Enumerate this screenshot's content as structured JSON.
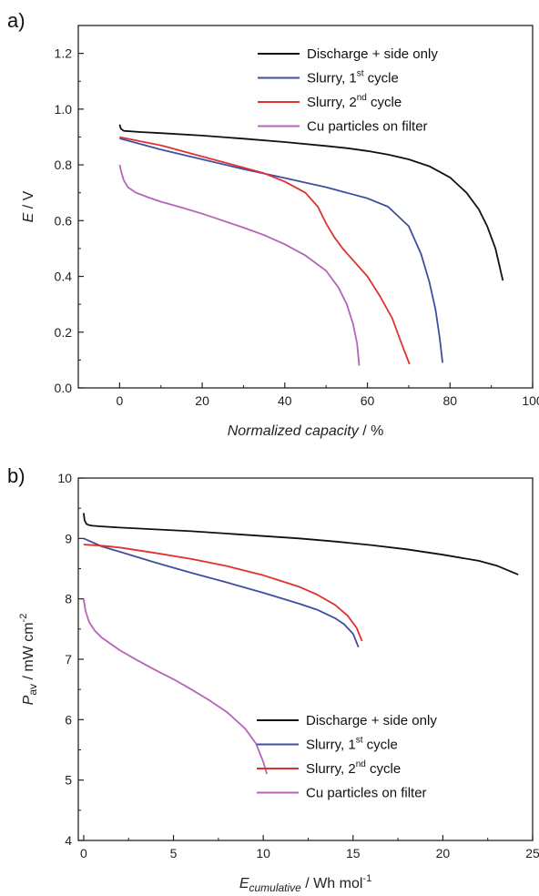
{
  "chart_data": [
    {
      "panel_label": "a)",
      "type": "line",
      "xlabel": "Normalized capacity / %",
      "ylabel_italic": "E",
      "ylabel_rest": " / V",
      "xlim": [
        -10,
        100
      ],
      "ylim": [
        0,
        1.3
      ],
      "xticks": [
        0,
        20,
        40,
        60,
        80,
        100
      ],
      "yticks": [
        0.0,
        0.2,
        0.4,
        0.6,
        0.8,
        1.0,
        1.2
      ],
      "legend_position": "top-right",
      "series": [
        {
          "label_main": "Discharge + side only",
          "label_sup": "",
          "label_tail": "",
          "color": "#111111",
          "x": [
            0,
            0.3,
            1,
            5,
            10,
            20,
            30,
            40,
            50,
            55,
            60,
            65,
            70,
            75,
            80,
            84,
            87,
            89,
            91,
            92.8
          ],
          "y": [
            0.945,
            0.93,
            0.922,
            0.918,
            0.914,
            0.905,
            0.894,
            0.882,
            0.868,
            0.86,
            0.85,
            0.837,
            0.82,
            0.795,
            0.755,
            0.7,
            0.64,
            0.58,
            0.5,
            0.385
          ]
        },
        {
          "label_main": "Slurry, 1",
          "label_sup": "st",
          "label_tail": " cycle",
          "color": "#3f4fa0",
          "x": [
            0,
            5,
            10,
            20,
            30,
            40,
            50,
            55,
            60,
            65,
            70,
            73,
            75,
            76.5,
            77.5,
            78.2
          ],
          "y": [
            0.895,
            0.875,
            0.855,
            0.82,
            0.785,
            0.753,
            0.72,
            0.7,
            0.68,
            0.65,
            0.58,
            0.48,
            0.38,
            0.28,
            0.18,
            0.09
          ]
        },
        {
          "label_main": "Slurry, 2",
          "label_sup": "nd",
          "label_tail": " cycle",
          "color": "#e03030",
          "x": [
            0,
            5,
            10,
            15,
            20,
            25,
            30,
            35,
            40,
            45,
            48,
            50,
            52,
            54,
            57,
            60,
            63,
            66,
            68,
            70.2
          ],
          "y": [
            0.9,
            0.885,
            0.87,
            0.85,
            0.83,
            0.81,
            0.79,
            0.77,
            0.74,
            0.7,
            0.65,
            0.59,
            0.54,
            0.5,
            0.45,
            0.4,
            0.33,
            0.25,
            0.17,
            0.085
          ]
        },
        {
          "label_main": "Cu particles on filter",
          "label_sup": "",
          "label_tail": "",
          "color": "#b565b5",
          "x": [
            0,
            0.5,
            1,
            2,
            4,
            7,
            10,
            15,
            20,
            25,
            30,
            35,
            40,
            45,
            50,
            53,
            55,
            56.5,
            57.5,
            58
          ],
          "y": [
            0.8,
            0.77,
            0.745,
            0.72,
            0.7,
            0.683,
            0.668,
            0.647,
            0.625,
            0.6,
            0.575,
            0.548,
            0.515,
            0.475,
            0.42,
            0.36,
            0.3,
            0.23,
            0.16,
            0.08
          ]
        }
      ]
    },
    {
      "panel_label": "b)",
      "type": "line",
      "xlabel_italic": "E",
      "xlabel_sub": "cumulative",
      "xlabel_rest": " / Wh mol",
      "xlabel_sup": "-1",
      "ylabel_italic": "P",
      "ylabel_sub": "av",
      "ylabel_rest": " / mW cm",
      "ylabel_sup": "-2",
      "xlim": [
        -0.3,
        25
      ],
      "ylim": [
        4,
        10
      ],
      "xticks": [
        0,
        5,
        10,
        15,
        20,
        25
      ],
      "yticks": [
        4,
        5,
        6,
        7,
        8,
        9,
        10
      ],
      "legend_position": "bottom-right",
      "series": [
        {
          "label_main": "Discharge + side only",
          "label_sup": "",
          "label_tail": "",
          "color": "#111111",
          "x": [
            0,
            0.05,
            0.15,
            0.3,
            0.5,
            1,
            2,
            4,
            6,
            8,
            10,
            12,
            14,
            16,
            18,
            20,
            22,
            23,
            24.2
          ],
          "y": [
            9.42,
            9.3,
            9.24,
            9.22,
            9.21,
            9.2,
            9.18,
            9.15,
            9.12,
            9.08,
            9.04,
            9.0,
            8.95,
            8.89,
            8.82,
            8.73,
            8.63,
            8.55,
            8.4
          ]
        },
        {
          "label_main": "Slurry, 1",
          "label_sup": "st",
          "label_tail": " cycle",
          "color": "#3f4fa0",
          "x": [
            0,
            1,
            2,
            4,
            6,
            8,
            10,
            12,
            13,
            14,
            14.5,
            15,
            15.3
          ],
          "y": [
            9.0,
            8.87,
            8.78,
            8.6,
            8.43,
            8.27,
            8.1,
            7.92,
            7.82,
            7.68,
            7.58,
            7.42,
            7.2
          ]
        },
        {
          "label_main": "Slurry, 2",
          "label_sup": "nd",
          "label_tail": " cycle",
          "color": "#e03030",
          "x": [
            0,
            1,
            2,
            4,
            6,
            8,
            10,
            12,
            13,
            14,
            14.7,
            15.2,
            15.5
          ],
          "y": [
            8.9,
            8.88,
            8.85,
            8.76,
            8.66,
            8.54,
            8.39,
            8.2,
            8.07,
            7.9,
            7.72,
            7.52,
            7.3
          ]
        },
        {
          "label_main": "Cu particles on filter",
          "label_sup": "",
          "label_tail": "",
          "color": "#b565b5",
          "x": [
            0,
            0.1,
            0.3,
            0.6,
            1,
            2,
            3,
            4,
            5,
            6,
            7,
            8,
            9,
            9.6,
            10,
            10.2
          ],
          "y": [
            8.0,
            7.8,
            7.62,
            7.48,
            7.36,
            7.15,
            6.98,
            6.82,
            6.67,
            6.5,
            6.32,
            6.12,
            5.85,
            5.6,
            5.3,
            5.1
          ]
        }
      ]
    }
  ]
}
